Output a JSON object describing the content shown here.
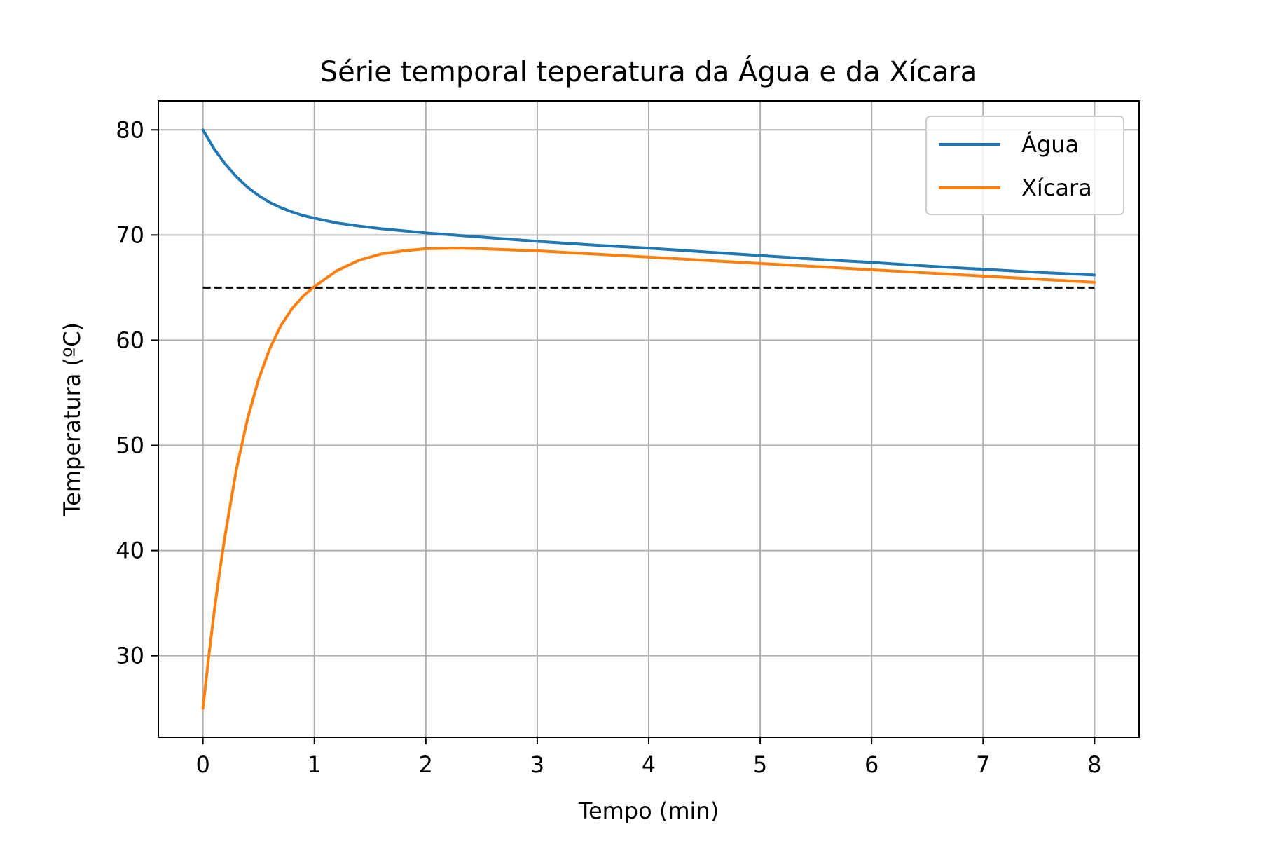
{
  "chart_data": {
    "type": "line",
    "title": "Série temporal teperatura da Água e da Xícara",
    "xlabel": "Tempo (min)",
    "ylabel": "Temperatura (ºC)",
    "xlim": [
      -0.4,
      8.4
    ],
    "ylim": [
      22.25,
      82.75
    ],
    "xticks": [
      0,
      1,
      2,
      3,
      4,
      5,
      6,
      7,
      8
    ],
    "xtick_labels": [
      "0",
      "1",
      "2",
      "3",
      "4",
      "5",
      "6",
      "7",
      "8"
    ],
    "yticks": [
      30,
      40,
      50,
      60,
      70,
      80
    ],
    "ytick_labels": [
      "30",
      "40",
      "50",
      "60",
      "70",
      "80"
    ],
    "grid": true,
    "legend_position": "top-right",
    "series": [
      {
        "name": "Água",
        "color": "#1f77b4",
        "x": [
          0,
          0.1,
          0.2,
          0.3,
          0.4,
          0.5,
          0.6,
          0.7,
          0.8,
          0.9,
          1.0,
          1.2,
          1.4,
          1.6,
          1.8,
          2.0,
          2.5,
          3.0,
          3.5,
          4.0,
          4.5,
          5.0,
          5.5,
          6.0,
          6.5,
          7.0,
          7.5,
          8.0
        ],
        "y": [
          80.0,
          78.2,
          76.75,
          75.55,
          74.55,
          73.75,
          73.1,
          72.6,
          72.2,
          71.85,
          71.6,
          71.15,
          70.85,
          70.6,
          70.4,
          70.2,
          69.8,
          69.4,
          69.05,
          68.75,
          68.4,
          68.05,
          67.7,
          67.4,
          67.05,
          66.75,
          66.45,
          66.2
        ]
      },
      {
        "name": "Xícara",
        "color": "#ff7f0e",
        "x": [
          0,
          0.05,
          0.1,
          0.15,
          0.2,
          0.3,
          0.4,
          0.5,
          0.6,
          0.7,
          0.8,
          0.9,
          1.0,
          1.2,
          1.4,
          1.6,
          1.8,
          2.0,
          2.3,
          2.5,
          3.0,
          3.5,
          4.0,
          4.5,
          5.0,
          5.5,
          6.0,
          6.5,
          7.0,
          7.5,
          8.0
        ],
        "y": [
          25.0,
          29.7,
          34.1,
          38.0,
          41.5,
          47.7,
          52.5,
          56.3,
          59.2,
          61.4,
          63.0,
          64.2,
          65.1,
          66.6,
          67.6,
          68.2,
          68.5,
          68.7,
          68.75,
          68.7,
          68.5,
          68.2,
          67.9,
          67.6,
          67.3,
          67.0,
          66.7,
          66.4,
          66.1,
          65.8,
          65.5
        ]
      }
    ],
    "reference_line": {
      "y": 65,
      "x_range": [
        0,
        8
      ],
      "style": "dashed",
      "color": "#000000"
    }
  }
}
